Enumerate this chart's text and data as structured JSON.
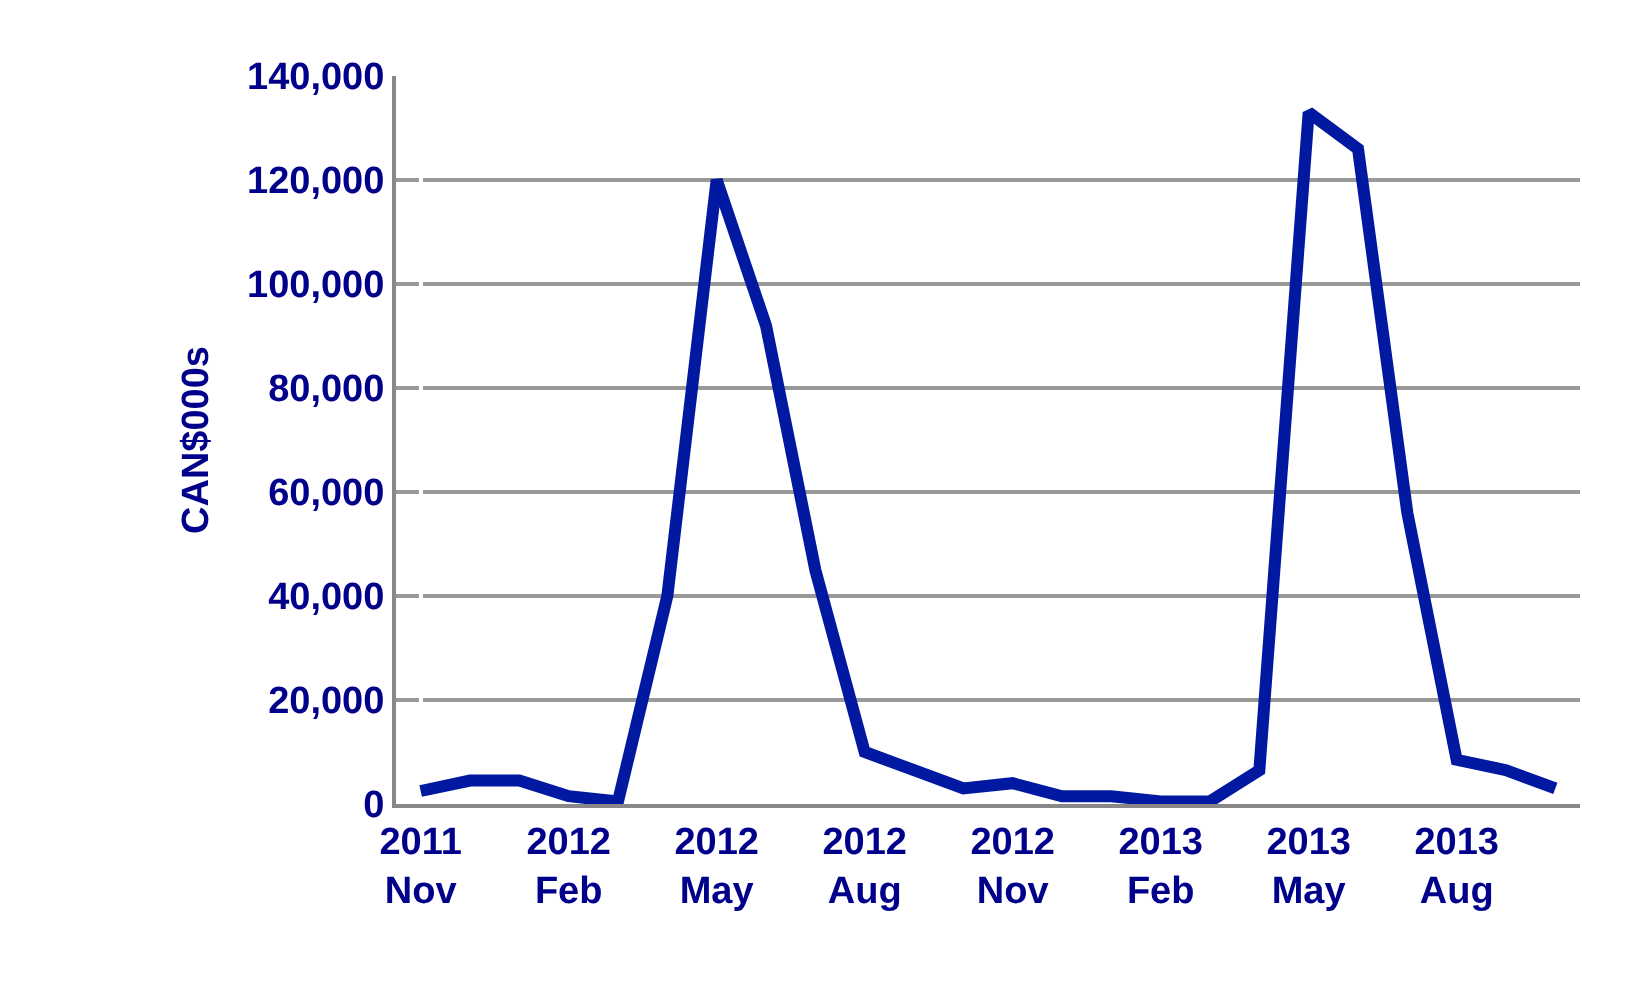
{
  "chart_data": {
    "type": "line",
    "ylabel": "CAN$000s",
    "categories": [
      "2011\nNov",
      null,
      null,
      "2012\nFeb",
      null,
      null,
      "2012\nMay",
      null,
      null,
      "2012\nAug",
      null,
      null,
      "2012\nNov",
      null,
      null,
      "2013\nFeb",
      null,
      null,
      "2013\nMay",
      null,
      null,
      "2013\nAug",
      null,
      null
    ],
    "series": [
      {
        "color": "#0019a0",
        "values": [
          2500,
          4500,
          4500,
          1500,
          500,
          40000,
          120000,
          92000,
          45000,
          10000,
          6500,
          3000,
          4000,
          1500,
          1500,
          500,
          500,
          6500,
          133000,
          126000,
          56000,
          8500,
          6500,
          3000
        ]
      }
    ],
    "ylim": [
      0,
      140000
    ],
    "yticks": [
      {
        "value": 0,
        "label": "0"
      },
      {
        "value": 20000,
        "label": "20,000"
      },
      {
        "value": 40000,
        "label": "40,000"
      },
      {
        "value": 60000,
        "label": "60,000"
      },
      {
        "value": 80000,
        "label": "80,000"
      },
      {
        "value": 100000,
        "label": "100,000"
      },
      {
        "value": 120000,
        "label": "120,000"
      },
      {
        "value": 140000,
        "label": "140,000"
      }
    ],
    "grid": "y",
    "marker": "none",
    "line_style": "solid"
  }
}
